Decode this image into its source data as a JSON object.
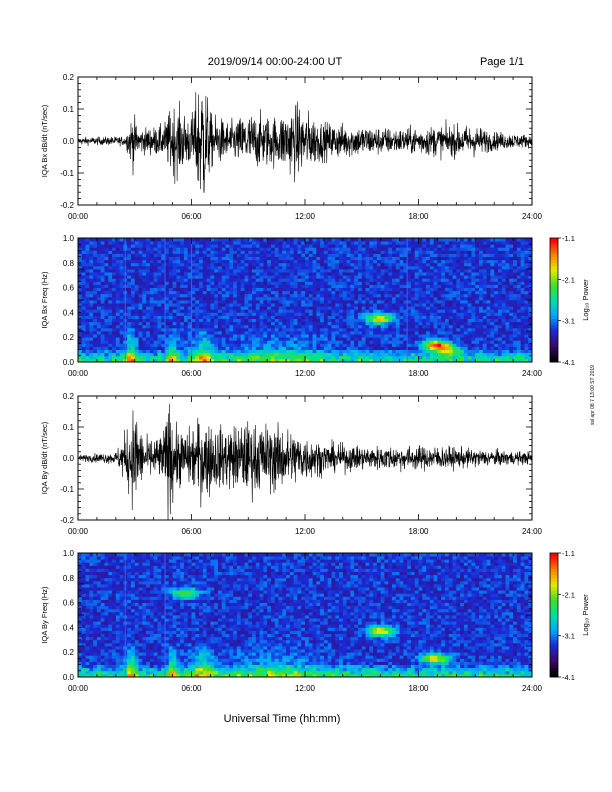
{
  "header": {
    "title": "2019/09/14  00:00-24:00 UT",
    "page": "Page 1/1"
  },
  "footer": {
    "xlabel": "Universal Time (hh:mm)",
    "side_note": "ssl apr 08 7 13:00 ST 2019"
  },
  "colors": {
    "trace": "#000000",
    "colormap": [
      "#000000",
      "#3a0a6a",
      "#1a2ad8",
      "#00a8ff",
      "#00e0a0",
      "#40e020",
      "#e8e800",
      "#ff8000",
      "#ff0000"
    ]
  },
  "chart_data": [
    {
      "type": "line",
      "ylabel": "IQA Bx dB/dt (nT/sec)",
      "x_ticks": [
        "00:00",
        "06:00",
        "12:00",
        "18:00",
        "24:00"
      ],
      "xlim": [
        0,
        24
      ],
      "ylim": [
        -0.2,
        0.2
      ],
      "y_ticks": [
        "0.2",
        "0.1",
        "0.0",
        "-0.1",
        "-0.2"
      ],
      "y_tick_values": [
        0.2,
        0.1,
        0.0,
        -0.1,
        -0.2
      ],
      "envelope": {
        "hours": [
          0,
          2.5,
          2.9,
          3.2,
          4.5,
          5.0,
          6.0,
          6.6,
          7.0,
          8.0,
          9.0,
          10.5,
          11.5,
          13.0,
          15.0,
          17.0,
          19.0,
          21.0,
          22.0,
          24.0
        ],
        "amplitude": [
          0.012,
          0.015,
          0.09,
          0.04,
          0.05,
          0.12,
          0.08,
          0.25,
          0.09,
          0.06,
          0.09,
          0.08,
          0.12,
          0.06,
          0.05,
          0.04,
          0.05,
          0.05,
          0.03,
          0.02
        ]
      }
    },
    {
      "type": "heatmap",
      "ylabel": "IQA Bx Freq (Hz)",
      "x_ticks": [
        "00:00",
        "06:00",
        "12:00",
        "18:00",
        "24:00"
      ],
      "xlim": [
        0,
        24
      ],
      "ylim": [
        0.0,
        1.0
      ],
      "y_ticks": [
        "1.0",
        "0.8",
        "0.6",
        "0.4",
        "0.2",
        "0.0"
      ],
      "y_tick_values": [
        1.0,
        0.8,
        0.6,
        0.4,
        0.2,
        0.0
      ],
      "colorbar": {
        "label": "Log₁₀ Power",
        "ticks": [
          "-1.1",
          "-2.1",
          "-3.1",
          "-4.1"
        ],
        "range": [
          -4.1,
          -1.1
        ]
      },
      "features": [
        {
          "hour": 15.9,
          "freq": 0.35,
          "strength": 0.55
        },
        {
          "hour": 18.9,
          "freq": 0.14,
          "strength": 0.6
        },
        {
          "hour": 19.5,
          "freq": 0.1,
          "strength": 0.45
        }
      ],
      "vertical_lines": [
        2.5,
        4.6,
        6.0,
        17.4
      ]
    },
    {
      "type": "line",
      "ylabel": "IQA By dB/dt (nT/sec)",
      "x_ticks": [
        "00:00",
        "06:00",
        "12:00",
        "18:00",
        "24:00"
      ],
      "xlim": [
        0,
        24
      ],
      "ylim": [
        -0.2,
        0.2
      ],
      "y_ticks": [
        "0.2",
        "0.1",
        "0.0",
        "-0.1",
        "-0.2"
      ],
      "y_tick_values": [
        0.2,
        0.1,
        0.0,
        -0.1,
        -0.2
      ],
      "envelope": {
        "hours": [
          0,
          2.0,
          2.6,
          3.0,
          3.5,
          4.5,
          4.8,
          5.2,
          5.8,
          6.5,
          7.5,
          9.0,
          10.5,
          11.5,
          13.0,
          15.0,
          17.0,
          19.0,
          21.0,
          24.0
        ],
        "amplitude": [
          0.01,
          0.02,
          0.1,
          0.18,
          0.06,
          0.08,
          0.2,
          0.1,
          0.09,
          0.14,
          0.1,
          0.12,
          0.11,
          0.09,
          0.05,
          0.04,
          0.04,
          0.04,
          0.03,
          0.02
        ]
      }
    },
    {
      "type": "heatmap",
      "ylabel": "IQA By Freq (Hz)",
      "x_ticks": [
        "00:00",
        "06:00",
        "12:00",
        "18:00",
        "24:00"
      ],
      "xlim": [
        0,
        24
      ],
      "ylim": [
        0.0,
        1.0
      ],
      "y_ticks": [
        "1.0",
        "0.8",
        "0.6",
        "0.4",
        "0.2",
        "0.0"
      ],
      "y_tick_values": [
        1.0,
        0.8,
        0.6,
        0.4,
        0.2,
        0.0
      ],
      "colorbar": {
        "label": "Log₁₀ Power",
        "ticks": [
          "-1.1",
          "-2.1",
          "-3.1",
          "-4.1"
        ],
        "range": [
          -4.1,
          -1.1
        ]
      },
      "features": [
        {
          "hour": 16.0,
          "freq": 0.37,
          "strength": 0.55
        },
        {
          "hour": 18.9,
          "freq": 0.15,
          "strength": 0.55
        },
        {
          "hour": 5.7,
          "freq": 0.68,
          "strength": 0.4
        }
      ],
      "vertical_lines": [
        2.5,
        4.6
      ]
    }
  ]
}
